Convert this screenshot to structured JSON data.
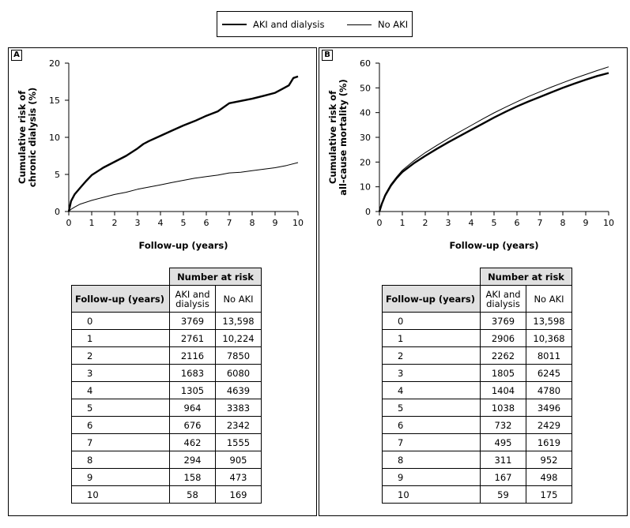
{
  "legend": {
    "series": [
      {
        "name": "AKI and dialysis",
        "color": "#000000"
      },
      {
        "name": "No AKI",
        "color": "#000000"
      }
    ]
  },
  "chart_data": [
    {
      "panel": "A",
      "type": "line",
      "title": "",
      "xlabel": "Follow-up (years)",
      "ylabel_line1": "Cumulative risk of",
      "ylabel_line2": "chronic dialysis (%)",
      "xlim": [
        0,
        10
      ],
      "ylim": [
        0,
        20
      ],
      "xticks": [
        0,
        1,
        2,
        3,
        4,
        5,
        6,
        7,
        8,
        9,
        10
      ],
      "yticks": [
        0,
        5,
        10,
        15,
        20
      ],
      "series": [
        {
          "name": "AKI and dialysis",
          "x": [
            0,
            0.1,
            0.25,
            0.5,
            0.75,
            1,
            1.5,
            2,
            2.5,
            3,
            3.25,
            3.5,
            4,
            4.5,
            5,
            5.5,
            6,
            6.5,
            7,
            7.5,
            8,
            8.5,
            9,
            9.3,
            9.6,
            9.8,
            10
          ],
          "y": [
            0,
            1.4,
            2.3,
            3.2,
            4.1,
            4.9,
            5.9,
            6.7,
            7.5,
            8.5,
            9.1,
            9.5,
            10.2,
            10.9,
            11.6,
            12.2,
            12.9,
            13.5,
            14.6,
            14.9,
            15.2,
            15.6,
            16.0,
            16.5,
            17.0,
            18.0,
            18.2
          ]
        },
        {
          "name": "No AKI",
          "x": [
            0,
            0.1,
            0.25,
            0.5,
            1,
            1.5,
            2,
            2.5,
            3,
            3.5,
            4,
            4.5,
            5,
            5.5,
            6,
            6.5,
            7,
            7.5,
            8,
            8.5,
            9,
            9.5,
            10
          ],
          "y": [
            0,
            0.3,
            0.6,
            1.0,
            1.5,
            1.9,
            2.3,
            2.6,
            3.0,
            3.3,
            3.6,
            3.9,
            4.2,
            4.5,
            4.7,
            4.9,
            5.2,
            5.3,
            5.5,
            5.7,
            5.9,
            6.2,
            6.6
          ]
        }
      ],
      "risk_table": {
        "group_header": "Number at risk",
        "col0": "Follow-up (years)",
        "col1": "AKI and dialysis",
        "col2": "No AKI",
        "rows": [
          [
            "0",
            "3769",
            "13,598"
          ],
          [
            "1",
            "2761",
            "10,224"
          ],
          [
            "2",
            "2116",
            "7850"
          ],
          [
            "3",
            "1683",
            "6080"
          ],
          [
            "4",
            "1305",
            "4639"
          ],
          [
            "5",
            "964",
            "3383"
          ],
          [
            "6",
            "676",
            "2342"
          ],
          [
            "7",
            "462",
            "1555"
          ],
          [
            "8",
            "294",
            "905"
          ],
          [
            "9",
            "158",
            "473"
          ],
          [
            "10",
            "58",
            "169"
          ]
        ]
      }
    },
    {
      "panel": "B",
      "type": "line",
      "title": "",
      "xlabel": "Follow-up (years)",
      "ylabel_line1": "Cumulative risk of",
      "ylabel_line2": "all-cause mortality (%)",
      "xlim": [
        0,
        10
      ],
      "ylim": [
        0,
        60
      ],
      "xticks": [
        0,
        1,
        2,
        3,
        4,
        5,
        6,
        7,
        8,
        9,
        10
      ],
      "yticks": [
        0,
        10,
        20,
        30,
        40,
        50,
        60
      ],
      "series": [
        {
          "name": "AKI and dialysis",
          "x": [
            0,
            0.1,
            0.25,
            0.5,
            0.75,
            1,
            1.5,
            2,
            2.5,
            3,
            3.5,
            4,
            4.5,
            5,
            5.5,
            6,
            6.5,
            7,
            7.5,
            8,
            8.5,
            9,
            9.5,
            10
          ],
          "y": [
            0,
            3,
            6.5,
            10.5,
            13.5,
            16,
            19.5,
            22.5,
            25.3,
            28,
            30.5,
            33,
            35.5,
            38,
            40.3,
            42.5,
            44.5,
            46.3,
            48.2,
            50,
            51.7,
            53.3,
            54.8,
            56
          ]
        },
        {
          "name": "No AKI",
          "x": [
            0,
            0.1,
            0.25,
            0.5,
            0.75,
            1,
            1.5,
            2,
            2.5,
            3,
            3.5,
            4,
            4.5,
            5,
            5.5,
            6,
            6.5,
            7,
            7.5,
            8,
            8.5,
            9,
            9.5,
            10
          ],
          "y": [
            0,
            3.2,
            7,
            11,
            14,
            16.7,
            20.5,
            23.8,
            26.7,
            29.5,
            32.2,
            34.8,
            37.4,
            39.9,
            42.2,
            44.4,
            46.5,
            48.4,
            50.3,
            52.1,
            53.8,
            55.4,
            57,
            58.5
          ]
        }
      ],
      "risk_table": {
        "group_header": "Number at risk",
        "col0": "Follow-up (years)",
        "col1": "AKI and dialysis",
        "col2": "No AKI",
        "rows": [
          [
            "0",
            "3769",
            "13,598"
          ],
          [
            "1",
            "2906",
            "10,368"
          ],
          [
            "2",
            "2262",
            "8011"
          ],
          [
            "3",
            "1805",
            "6245"
          ],
          [
            "4",
            "1404",
            "4780"
          ],
          [
            "5",
            "1038",
            "3496"
          ],
          [
            "6",
            "732",
            "2429"
          ],
          [
            "7",
            "495",
            "1619"
          ],
          [
            "8",
            "311",
            "952"
          ],
          [
            "9",
            "167",
            "498"
          ],
          [
            "10",
            "59",
            "175"
          ]
        ]
      }
    }
  ]
}
